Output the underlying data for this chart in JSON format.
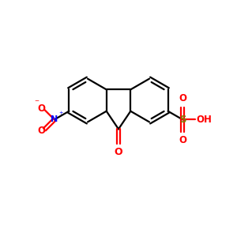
{
  "bg_color": "#ffffff",
  "bond_color": "#000000",
  "N_color": "#0000ff",
  "O_color": "#ff0000",
  "S_color": "#808000",
  "lw": 1.6,
  "figsize": [
    3.0,
    3.0
  ],
  "dpi": 100,
  "xlim": [
    0,
    10
  ],
  "ylim": [
    0,
    10
  ]
}
